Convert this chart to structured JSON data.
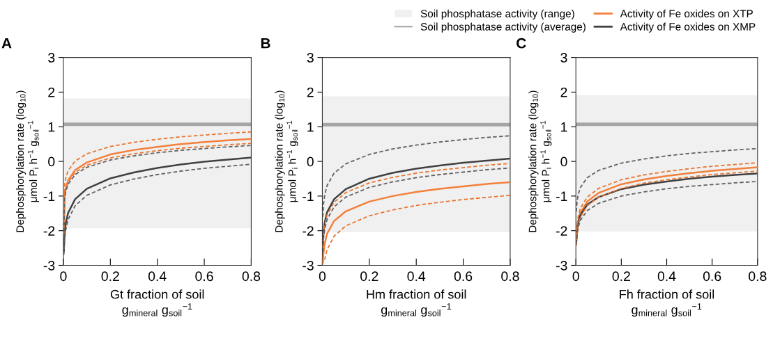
{
  "chart_data": [
    {
      "type": "line",
      "title": "A",
      "xlabel": "Gt fraction of soil\ng$_{mineral}$ g$_{soil}$$^{−1}$",
      "ylabel": "Dephosphorylation rate (log$_{10}$)\nμmol P$_{i}$ h$^{−1}$ g$_{soil}$$^{−1}$",
      "x": [
        0.002,
        0.005,
        0.01,
        0.02,
        0.05,
        0.1,
        0.2,
        0.3,
        0.4,
        0.5,
        0.6,
        0.7,
        0.8
      ],
      "xlim": [
        0,
        0.8
      ],
      "xticks": [
        0,
        0.2,
        0.4,
        0.6,
        0.8
      ],
      "ylim": [
        -3,
        3
      ],
      "yticks": [
        -3,
        -2,
        -1,
        0,
        1,
        2,
        3
      ],
      "grid": false,
      "bands": [
        {
          "axis": "y",
          "from": -1.93,
          "to": 1.82,
          "color": "#f0f0f0"
        }
      ],
      "ref_lines": [
        {
          "axis": "y",
          "value": 1.07,
          "color": "#a6a6a6",
          "line_style": "solid"
        }
      ],
      "series": [
        {
          "color": "#e8752f",
          "line_style": "dashed",
          "values": [
            -1.6,
            -0.69,
            -0.48,
            -0.27,
            0.01,
            0.22,
            0.43,
            0.55,
            0.64,
            0.71,
            0.76,
            0.81,
            0.85
          ]
        },
        {
          "color": "#f47f3a",
          "line_style": "solid",
          "values": [
            -2.0,
            -1.0,
            -0.78,
            -0.55,
            -0.25,
            -0.03,
            0.2,
            0.33,
            0.42,
            0.5,
            0.56,
            0.61,
            0.65
          ]
        },
        {
          "color": "#e8752f",
          "line_style": "dashed",
          "values": [
            -2.1,
            -1.02,
            -0.81,
            -0.6,
            -0.32,
            -0.11,
            0.1,
            0.22,
            0.31,
            0.38,
            0.43,
            0.48,
            0.52
          ]
        },
        {
          "color": "#606060",
          "line_style": "dashed",
          "values": [
            -2.2,
            -1.08,
            -0.87,
            -0.66,
            -0.38,
            -0.17,
            0.04,
            0.16,
            0.25,
            0.32,
            0.37,
            0.42,
            0.46
          ]
        },
        {
          "color": "#404040",
          "line_style": "solid",
          "values": [
            -2.6,
            -2.09,
            -1.79,
            -1.49,
            -1.09,
            -0.79,
            -0.49,
            -0.32,
            -0.19,
            -0.09,
            -0.01,
            0.05,
            0.11
          ]
        },
        {
          "color": "#606060",
          "line_style": "dashed",
          "values": [
            -2.7,
            -2.28,
            -1.98,
            -1.68,
            -1.28,
            -0.98,
            -0.68,
            -0.51,
            -0.38,
            -0.28,
            -0.2,
            -0.14,
            -0.08
          ]
        }
      ]
    },
    {
      "type": "line",
      "title": "B",
      "xlabel": "Hm fraction of soil\ng$_{mineral}$ g$_{soil}$$^{−1}$",
      "ylabel": "Dephosphorylation rate (log$_{10}$)\nμmol P$_{i}$ h$^{−1}$ g$_{soil}$$^{−1}$",
      "x": [
        0.002,
        0.005,
        0.01,
        0.02,
        0.05,
        0.1,
        0.2,
        0.3,
        0.4,
        0.5,
        0.6,
        0.7,
        0.8
      ],
      "xlim": [
        0,
        0.8
      ],
      "xticks": [
        0,
        0.2,
        0.4,
        0.6,
        0.8
      ],
      "ylim": [
        -3,
        3
      ],
      "yticks": [
        -3,
        -2,
        -1,
        0,
        1,
        2,
        3
      ],
      "grid": false,
      "bands": [
        {
          "axis": "y",
          "from": -2.04,
          "to": 1.88,
          "color": "#f0f0f0"
        }
      ],
      "ref_lines": [
        {
          "axis": "y",
          "value": 1.06,
          "color": "#a6a6a6",
          "line_style": "solid"
        }
      ],
      "series": [
        {
          "color": "#606060",
          "line_style": "dashed",
          "values": [
            -1.6,
            -1.24,
            -0.97,
            -0.7,
            -0.34,
            -0.07,
            0.2,
            0.36,
            0.47,
            0.56,
            0.63,
            0.69,
            0.74
          ]
        },
        {
          "color": "#404040",
          "line_style": "solid",
          "values": [
            -2.44,
            -2.06,
            -1.77,
            -1.47,
            -1.09,
            -0.8,
            -0.5,
            -0.33,
            -0.21,
            -0.12,
            -0.04,
            0.02,
            0.08
          ]
        },
        {
          "color": "#e8752f",
          "line_style": "dashed",
          "values": [
            -2.48,
            -2.11,
            -1.83,
            -1.55,
            -1.18,
            -0.9,
            -0.62,
            -0.46,
            -0.34,
            -0.25,
            -0.18,
            -0.11,
            -0.06
          ]
        },
        {
          "color": "#606060",
          "line_style": "dashed",
          "values": [
            -2.61,
            -2.24,
            -1.96,
            -1.68,
            -1.31,
            -1.03,
            -0.75,
            -0.59,
            -0.47,
            -0.38,
            -0.31,
            -0.24,
            -0.19
          ]
        },
        {
          "color": "#f47f3a",
          "line_style": "solid",
          "values": [
            -2.95,
            -2.65,
            -2.37,
            -2.09,
            -1.72,
            -1.44,
            -1.16,
            -1.0,
            -0.88,
            -0.79,
            -0.72,
            -0.65,
            -0.6
          ]
        },
        {
          "color": "#e8752f",
          "line_style": "dashed",
          "values": [
            null,
            null,
            -2.84,
            -2.55,
            -2.16,
            -1.86,
            -1.57,
            -1.4,
            -1.27,
            -1.18,
            -1.1,
            -1.04,
            -0.98
          ]
        }
      ]
    },
    {
      "type": "line",
      "title": "C",
      "xlabel": "Fh fraction of soil\ng$_{mineral}$ g$_{soil}$$^{−1}$",
      "ylabel": "Dephosphorylation rate (log$_{10}$)\nμmol P$_{i}$ h$^{−1}$ g$_{soil}$$^{−1}$",
      "x": [
        0.002,
        0.005,
        0.01,
        0.02,
        0.05,
        0.1,
        0.2,
        0.3,
        0.4,
        0.5,
        0.6,
        0.7,
        0.8
      ],
      "xlim": [
        0,
        0.8
      ],
      "xticks": [
        0,
        0.2,
        0.4,
        0.6,
        0.8
      ],
      "ylim": [
        -3,
        3
      ],
      "yticks": [
        -3,
        -2,
        -1,
        0,
        1,
        2,
        3
      ],
      "grid": false,
      "legend": "top",
      "bands": [
        {
          "axis": "y",
          "from": -2.02,
          "to": 1.91,
          "color": "#f0f0f0",
          "label": "Soil phosphatase activity (range)"
        }
      ],
      "ref_lines": [
        {
          "axis": "y",
          "value": 1.07,
          "color": "#a6a6a6",
          "line_style": "solid",
          "label": "Soil phosphatase activity (average)"
        }
      ],
      "series": [
        {
          "color": "#606060",
          "line_style": "dashed",
          "values": [
            -1.45,
            -1.17,
            -0.96,
            -0.75,
            -0.47,
            -0.26,
            -0.05,
            0.07,
            0.16,
            0.23,
            0.28,
            0.33,
            0.37
          ]
        },
        {
          "color": "#e8752f",
          "line_style": "dashed",
          "values": [
            -2.17,
            -1.85,
            -1.6,
            -1.35,
            -1.03,
            -0.78,
            -0.53,
            -0.39,
            -0.29,
            -0.21,
            -0.14,
            -0.09,
            -0.04
          ]
        },
        {
          "name": "Activity of Fe oxides on XTP",
          "color": "#f47f3a",
          "line_style": "solid",
          "values": [
            -2.3,
            -1.98,
            -1.73,
            -1.48,
            -1.16,
            -0.91,
            -0.66,
            -0.52,
            -0.42,
            -0.34,
            -0.27,
            -0.22,
            -0.17
          ]
        },
        {
          "color": "#e8752f",
          "line_style": "dashed",
          "values": [
            -2.44,
            -2.11,
            -1.86,
            -1.61,
            -1.28,
            -1.03,
            -0.78,
            -0.63,
            -0.53,
            -0.45,
            -0.38,
            -0.33,
            -0.28
          ]
        },
        {
          "name": "Activity of Fe oxides on XMP",
          "color": "#404040",
          "line_style": "solid",
          "values": [
            -2.3,
            -2.0,
            -1.78,
            -1.55,
            -1.25,
            -1.03,
            -0.8,
            -0.67,
            -0.58,
            -0.5,
            -0.44,
            -0.39,
            -0.35
          ]
        },
        {
          "color": "#606060",
          "line_style": "dashed",
          "values": [
            -2.4,
            -2.12,
            -1.91,
            -1.7,
            -1.42,
            -1.21,
            -1.0,
            -0.88,
            -0.79,
            -0.72,
            -0.67,
            -0.62,
            -0.58
          ]
        }
      ]
    }
  ]
}
